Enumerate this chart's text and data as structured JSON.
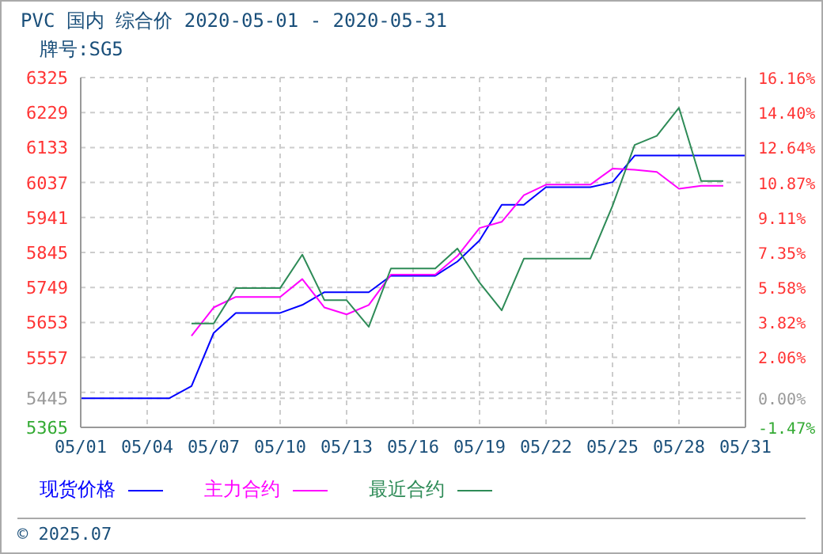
{
  "chart_data": {
    "type": "line",
    "title": "PVC 国内 综合价 2020-05-01 - 2020-05-31",
    "subtitle": "牌号:SG5",
    "categories": [
      "05/01",
      null,
      null,
      "05/04",
      null,
      null,
      "05/07",
      null,
      null,
      "05/10",
      null,
      null,
      "05/13",
      null,
      null,
      "05/16",
      null,
      null,
      "05/19",
      null,
      null,
      "05/22",
      null,
      null,
      "05/25",
      null,
      null,
      "05/28",
      null,
      null,
      "05/31"
    ],
    "series": [
      {
        "name": "现货价格",
        "color": "#0000ff",
        "values": [
          5445,
          5445,
          5445,
          5445,
          5445,
          5478,
          5624,
          5679,
          5679,
          5679,
          5701,
          5736,
          5736,
          5736,
          5781,
          5781,
          5781,
          5820,
          5878,
          5976,
          5976,
          6024,
          6024,
          6024,
          6038,
          6111,
          6111,
          6111,
          6111,
          6111,
          6111
        ]
      },
      {
        "name": "主力合约",
        "color": "#ff00ff",
        "values": [
          null,
          null,
          null,
          null,
          null,
          5616,
          5694,
          5723,
          5723,
          5723,
          5772,
          5694,
          5675,
          5701,
          5784,
          5784,
          5784,
          5835,
          5912,
          5929,
          6002,
          6031,
          6031,
          6031,
          6075,
          6072,
          6066,
          6020,
          6028,
          6028,
          null
        ]
      },
      {
        "name": "最近合约",
        "color": "#2e8b57",
        "values": [
          null,
          null,
          null,
          null,
          null,
          5650,
          5650,
          5747,
          5747,
          5747,
          5839,
          5714,
          5714,
          5641,
          5801,
          5801,
          5801,
          5856,
          5762,
          5686,
          5828,
          5828,
          5828,
          5828,
          5973,
          6140,
          6165,
          6242,
          6041,
          6041,
          null
        ]
      }
    ],
    "ylim": [
      5365,
      6325
    ],
    "yticks": [
      5365,
      5445,
      {
        "value": 5461,
        "label": null
      },
      5557,
      5653,
      5749,
      5845,
      5941,
      6037,
      6133,
      6229,
      6325
    ],
    "y2lim": [
      -1.47,
      16.16
    ],
    "y2ticks": [
      {
        "value": -1.47,
        "label": "-1.47%"
      },
      {
        "value": 0,
        "label": "0.00%"
      },
      {
        "value": 2.06,
        "label": "2.06%"
      },
      {
        "value": 3.82,
        "label": "3.82%"
      },
      {
        "value": 5.58,
        "label": "5.58%"
      },
      {
        "value": 7.35,
        "label": "7.35%"
      },
      {
        "value": 9.11,
        "label": "9.11%"
      },
      {
        "value": 10.87,
        "label": "10.87%"
      },
      {
        "value": 12.64,
        "label": "12.64%"
      },
      {
        "value": 14.4,
        "label": "14.40%"
      },
      {
        "value": 16.16,
        "label": "16.16%"
      }
    ],
    "grid": true,
    "legend": "bottom",
    "marker": "none",
    "line_style": "solid",
    "annotations": [
      "© 2025.07"
    ]
  }
}
